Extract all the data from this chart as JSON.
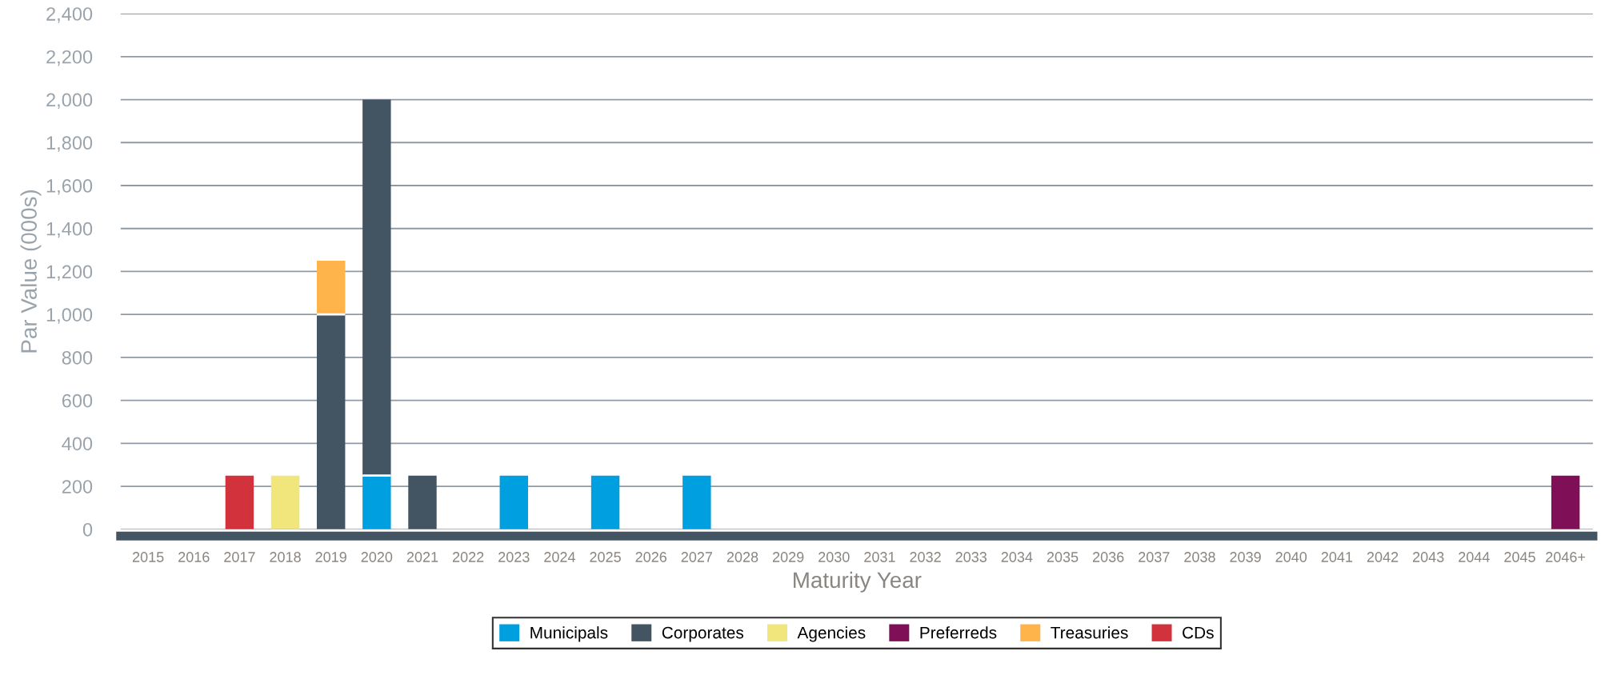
{
  "chart_data": {
    "type": "bar",
    "stacked": true,
    "xlabel": "Maturity Year",
    "ylabel": "Par Value (000s)",
    "categories": [
      "2015",
      "2016",
      "2017",
      "2018",
      "2019",
      "2020",
      "2021",
      "2022",
      "2023",
      "2024",
      "2025",
      "2026",
      "2027",
      "2028",
      "2029",
      "2030",
      "2031",
      "2032",
      "2033",
      "2034",
      "2035",
      "2036",
      "2037",
      "2038",
      "2039",
      "2040",
      "2041",
      "2042",
      "2043",
      "2044",
      "2045",
      "2046+"
    ],
    "series": [
      {
        "name": "Municipals",
        "color": "#009fdf",
        "values": [
          null,
          null,
          null,
          null,
          null,
          250,
          null,
          null,
          250,
          null,
          250,
          null,
          250,
          null,
          null,
          null,
          null,
          null,
          null,
          null,
          null,
          null,
          null,
          null,
          null,
          null,
          null,
          null,
          null,
          null,
          null,
          null
        ]
      },
      {
        "name": "Corporates",
        "color": "#435563",
        "values": [
          null,
          null,
          null,
          null,
          1000,
          1750,
          250,
          null,
          null,
          null,
          null,
          null,
          null,
          null,
          null,
          null,
          null,
          null,
          null,
          null,
          null,
          null,
          null,
          null,
          null,
          null,
          null,
          null,
          null,
          null,
          null,
          null
        ]
      },
      {
        "name": "Agencies",
        "color": "#f0e67c",
        "values": [
          null,
          null,
          null,
          250,
          null,
          null,
          null,
          null,
          null,
          null,
          null,
          null,
          null,
          null,
          null,
          null,
          null,
          null,
          null,
          null,
          null,
          null,
          null,
          null,
          null,
          null,
          null,
          null,
          null,
          null,
          null,
          null
        ]
      },
      {
        "name": "Preferreds",
        "color": "#7f0f57",
        "values": [
          null,
          null,
          null,
          null,
          null,
          null,
          null,
          null,
          null,
          null,
          null,
          null,
          null,
          null,
          null,
          null,
          null,
          null,
          null,
          null,
          null,
          null,
          null,
          null,
          null,
          null,
          null,
          null,
          null,
          null,
          null,
          250
        ]
      },
      {
        "name": "Treasuries",
        "color": "#ffb34b",
        "values": [
          null,
          null,
          null,
          null,
          250,
          null,
          null,
          null,
          null,
          null,
          null,
          null,
          null,
          null,
          null,
          null,
          null,
          null,
          null,
          null,
          null,
          null,
          null,
          null,
          null,
          null,
          null,
          null,
          null,
          null,
          null,
          null
        ]
      },
      {
        "name": "CDs",
        "color": "#d2323c",
        "values": [
          null,
          null,
          250,
          null,
          null,
          null,
          null,
          null,
          null,
          null,
          null,
          null,
          null,
          null,
          null,
          null,
          null,
          null,
          null,
          null,
          null,
          null,
          null,
          null,
          null,
          null,
          null,
          null,
          null,
          null,
          null,
          null
        ]
      }
    ],
    "ylim": [
      0,
      2400
    ],
    "yticks": [
      0,
      200,
      400,
      600,
      800,
      {
        "value": 1000,
        "label": "1,000"
      },
      {
        "value": 1200,
        "label": "1,200"
      },
      {
        "value": 1400,
        "label": "1,400"
      },
      {
        "value": 1600,
        "label": "1,600"
      },
      {
        "value": 1800,
        "label": "1,800"
      },
      {
        "value": 2000,
        "label": "2,000"
      },
      {
        "value": 2200,
        "label": "2,200"
      },
      {
        "value": 2400,
        "label": "2,400"
      }
    ],
    "grid": "y",
    "legend": "bottom"
  }
}
